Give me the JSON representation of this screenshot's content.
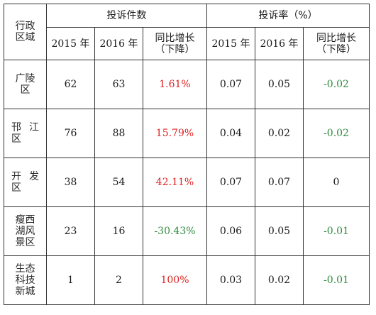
{
  "header": {
    "region_label_line1": "行政",
    "region_label_line2": "区域",
    "complaints_group": "投诉件数",
    "rate_group": "投诉率（%）",
    "year_2015": "2015 年",
    "year_2016": "2016 年",
    "change_line1": "同比增长",
    "change_line2": "（下降）"
  },
  "rows": [
    {
      "region_lines": [
        "广陵",
        "区"
      ],
      "c2015": "62",
      "c2016": "63",
      "c_change": "1.61%",
      "c_change_color": "red",
      "r2015": "0.07",
      "r2016": "0.05",
      "r_change": "-0.02",
      "r_change_color": "green"
    },
    {
      "region_lines": [
        "邗 江",
        "区"
      ],
      "c2015": "76",
      "c2016": "88",
      "c_change": "15.79%",
      "c_change_color": "red",
      "r2015": "0.04",
      "r2016": "0.02",
      "r_change": "-0.02",
      "r_change_color": "green"
    },
    {
      "region_lines": [
        "开 发",
        "区"
      ],
      "c2015": "38",
      "c2016": "54",
      "c_change": "42.11%",
      "c_change_color": "red",
      "r2015": "0.07",
      "r2016": "0.07",
      "r_change": "0",
      "r_change_color": "black"
    },
    {
      "region_lines": [
        "瘦西",
        "湖风",
        "景区"
      ],
      "c2015": "23",
      "c2016": "16",
      "c_change": "-30.43%",
      "c_change_color": "green",
      "r2015": "0.06",
      "r2016": "0.05",
      "r_change": "-0.01",
      "r_change_color": "green"
    },
    {
      "region_lines": [
        "生态",
        "科技",
        "新城"
      ],
      "c2015": "1",
      "c2016": "2",
      "c_change": "100%",
      "c_change_color": "red",
      "r2015": "0.03",
      "r2016": "0.02",
      "r_change": "-0.01",
      "r_change_color": "green"
    }
  ],
  "colors": {
    "red": "#e02020",
    "green": "#2e8b3e",
    "black": "#1a1a1a"
  }
}
